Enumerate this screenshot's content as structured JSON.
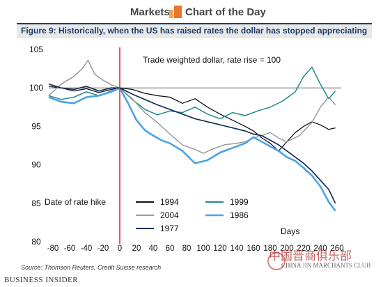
{
  "header": {
    "brand_left": "Markets",
    "brand_right": "Chart of the Day",
    "logo_icon": "bar-chart-logo-icon",
    "logo_colors": [
      "#f0a15a",
      "#e8762b"
    ]
  },
  "figure_title": "Figure 9: Historically, when the US has raised rates the dollar has stopped appreciating",
  "source": "Source: Thomson Reuters, Credit Suisse research",
  "publisher": "BUSINESS INSIDER",
  "watermark": {
    "text": "中国晋商俱乐部",
    "subtext": "CHINA JIN MARCHANTS CLUB"
  },
  "chart_data": {
    "type": "line",
    "annotation": "Trade weighted dollar, rate rise = 100",
    "marker_label": "Date of rate hike",
    "xlabel": "Days",
    "xlim": [
      -85,
      265
    ],
    "ylim": [
      80,
      106
    ],
    "xticks": [
      -80,
      -60,
      -40,
      -20,
      0,
      20,
      40,
      60,
      80,
      100,
      120,
      140,
      160,
      180,
      200,
      220,
      240,
      260
    ],
    "yticks": [
      80,
      85,
      90,
      95,
      100,
      105
    ],
    "reference_line": {
      "y": 100,
      "color": "#888888"
    },
    "event_line": {
      "x": 0,
      "color": "#e02020"
    },
    "legend_placement": "bottom-center",
    "series": [
      {
        "name": "1994",
        "color": "#111111",
        "width": 1.3,
        "x": [
          -85,
          -70,
          -55,
          -40,
          -25,
          -10,
          0,
          15,
          30,
          45,
          60,
          75,
          90,
          105,
          120,
          135,
          150,
          160,
          170,
          180,
          190,
          200,
          210,
          220,
          230,
          240,
          250,
          258
        ],
        "y": [
          100.2,
          100.0,
          99.6,
          99.9,
          99.4,
          99.8,
          100.0,
          99.8,
          99.3,
          99.0,
          98.8,
          98.0,
          98.6,
          97.5,
          96.6,
          95.8,
          95.0,
          94.4,
          93.5,
          92.8,
          91.8,
          93.0,
          94.2,
          95.0,
          95.6,
          95.2,
          94.6,
          94.8
        ]
      },
      {
        "name": "1999",
        "color": "#1f8a8a",
        "width": 1.5,
        "x": [
          -85,
          -70,
          -55,
          -40,
          -25,
          -10,
          0,
          15,
          30,
          45,
          60,
          75,
          90,
          105,
          120,
          135,
          150,
          165,
          180,
          195,
          210,
          220,
          230,
          240,
          250,
          258
        ],
        "y": [
          99.0,
          98.5,
          98.8,
          99.5,
          99.0,
          99.6,
          100.0,
          98.5,
          97.2,
          96.5,
          97.0,
          96.8,
          97.5,
          96.6,
          96.0,
          96.8,
          96.4,
          97.0,
          97.5,
          98.3,
          99.5,
          101.5,
          102.7,
          100.5,
          98.6,
          99.6
        ]
      },
      {
        "name": "2004",
        "color": "#9a9a9a",
        "width": 1.5,
        "x": [
          -85,
          -70,
          -55,
          -45,
          -38,
          -30,
          -20,
          -10,
          0,
          15,
          30,
          45,
          60,
          75,
          90,
          100,
          110,
          125,
          140,
          150,
          160,
          170,
          180,
          190,
          200,
          215,
          230,
          240,
          250,
          258
        ],
        "y": [
          99.0,
          100.5,
          101.5,
          102.5,
          103.6,
          101.8,
          101.0,
          100.4,
          100.0,
          98.6,
          96.8,
          95.5,
          94.0,
          92.6,
          92.0,
          91.5,
          92.0,
          92.6,
          92.8,
          93.0,
          93.5,
          93.8,
          94.2,
          93.5,
          93.0,
          93.8,
          95.5,
          97.5,
          98.8,
          97.8
        ]
      },
      {
        "name": "1986",
        "color": "#4aa3e6",
        "width": 2.6,
        "x": [
          -85,
          -70,
          -55,
          -40,
          -25,
          -10,
          0,
          10,
          20,
          30,
          40,
          50,
          60,
          75,
          90,
          105,
          120,
          135,
          150,
          160,
          170,
          180,
          190,
          200,
          210,
          220,
          230,
          240,
          250,
          258
        ],
        "y": [
          98.8,
          98.2,
          98.0,
          98.8,
          99.0,
          99.5,
          100.0,
          98.0,
          95.8,
          94.5,
          93.8,
          93.2,
          92.8,
          91.8,
          90.2,
          90.6,
          91.6,
          92.2,
          92.8,
          93.6,
          93.0,
          92.4,
          91.8,
          91.0,
          90.5,
          89.6,
          88.6,
          87.2,
          85.2,
          84.0
        ]
      },
      {
        "name": "1977",
        "color": "#162d5c",
        "width": 1.7,
        "x": [
          -85,
          -70,
          -55,
          -40,
          -25,
          -10,
          0,
          15,
          30,
          45,
          60,
          75,
          90,
          105,
          120,
          135,
          150,
          160,
          170,
          180,
          190,
          200,
          210,
          220,
          230,
          240,
          250,
          258
        ],
        "y": [
          100.5,
          100.0,
          99.8,
          100.2,
          99.6,
          100.0,
          100.0,
          99.2,
          98.5,
          97.8,
          97.2,
          96.6,
          96.0,
          95.6,
          95.2,
          94.8,
          94.4,
          94.0,
          93.8,
          93.2,
          92.6,
          91.8,
          91.0,
          90.2,
          89.2,
          88.0,
          86.8,
          85.0
        ]
      }
    ]
  }
}
